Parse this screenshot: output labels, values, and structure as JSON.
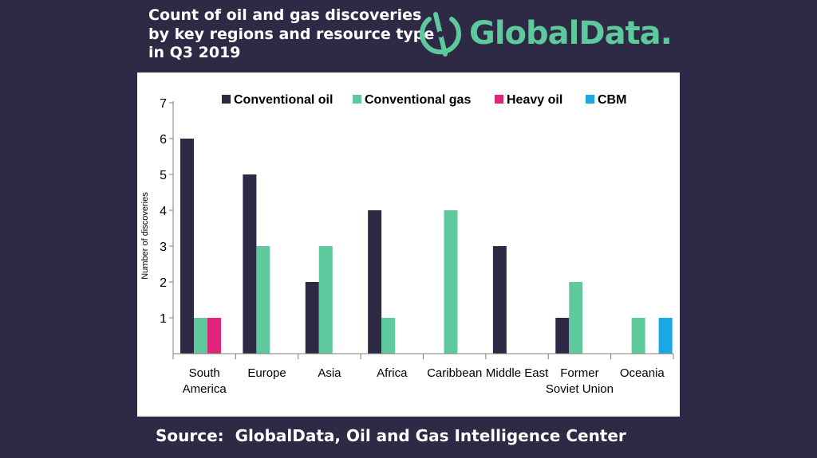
{
  "title_lines": [
    "Count of oil and gas discoveries",
    "by key regions and resource type",
    "in Q3 2019"
  ],
  "logo": {
    "name": "GlobalData.",
    "icon": "globaldata-logo-icon",
    "color": "#5ec99c"
  },
  "source": "Source:  GlobalData, Oil and Gas Intelligence Center",
  "colors": {
    "background": "#2e2a45",
    "panel": "#ffffff"
  },
  "chart_data": {
    "type": "bar",
    "ylabel": "Number of discoveries",
    "xlabel": "",
    "ylim": [
      0,
      7
    ],
    "yticks": [
      1,
      2,
      3,
      4,
      5,
      6,
      7
    ],
    "grid": false,
    "legend_position": "top",
    "categories": [
      [
        "South",
        "America"
      ],
      [
        "Europe"
      ],
      [
        "Asia"
      ],
      [
        "Africa"
      ],
      [
        "Caribbean"
      ],
      [
        "Middle East"
      ],
      [
        "Former",
        "Soviet Union"
      ],
      [
        "Oceania"
      ]
    ],
    "series": [
      {
        "name": "Conventional oil",
        "color": "#2e2a45",
        "values": [
          6,
          5,
          2,
          4,
          0,
          3,
          1,
          0
        ]
      },
      {
        "name": "Conventional gas",
        "color": "#5ec99c",
        "values": [
          1,
          3,
          3,
          1,
          4,
          0,
          2,
          1
        ]
      },
      {
        "name": "Heavy oil",
        "color": "#e0267a",
        "values": [
          1,
          0,
          0,
          0,
          0,
          0,
          0,
          0
        ]
      },
      {
        "name": "CBM",
        "color": "#1aa7e6",
        "values": [
          0,
          0,
          0,
          0,
          0,
          0,
          0,
          1
        ]
      }
    ]
  }
}
